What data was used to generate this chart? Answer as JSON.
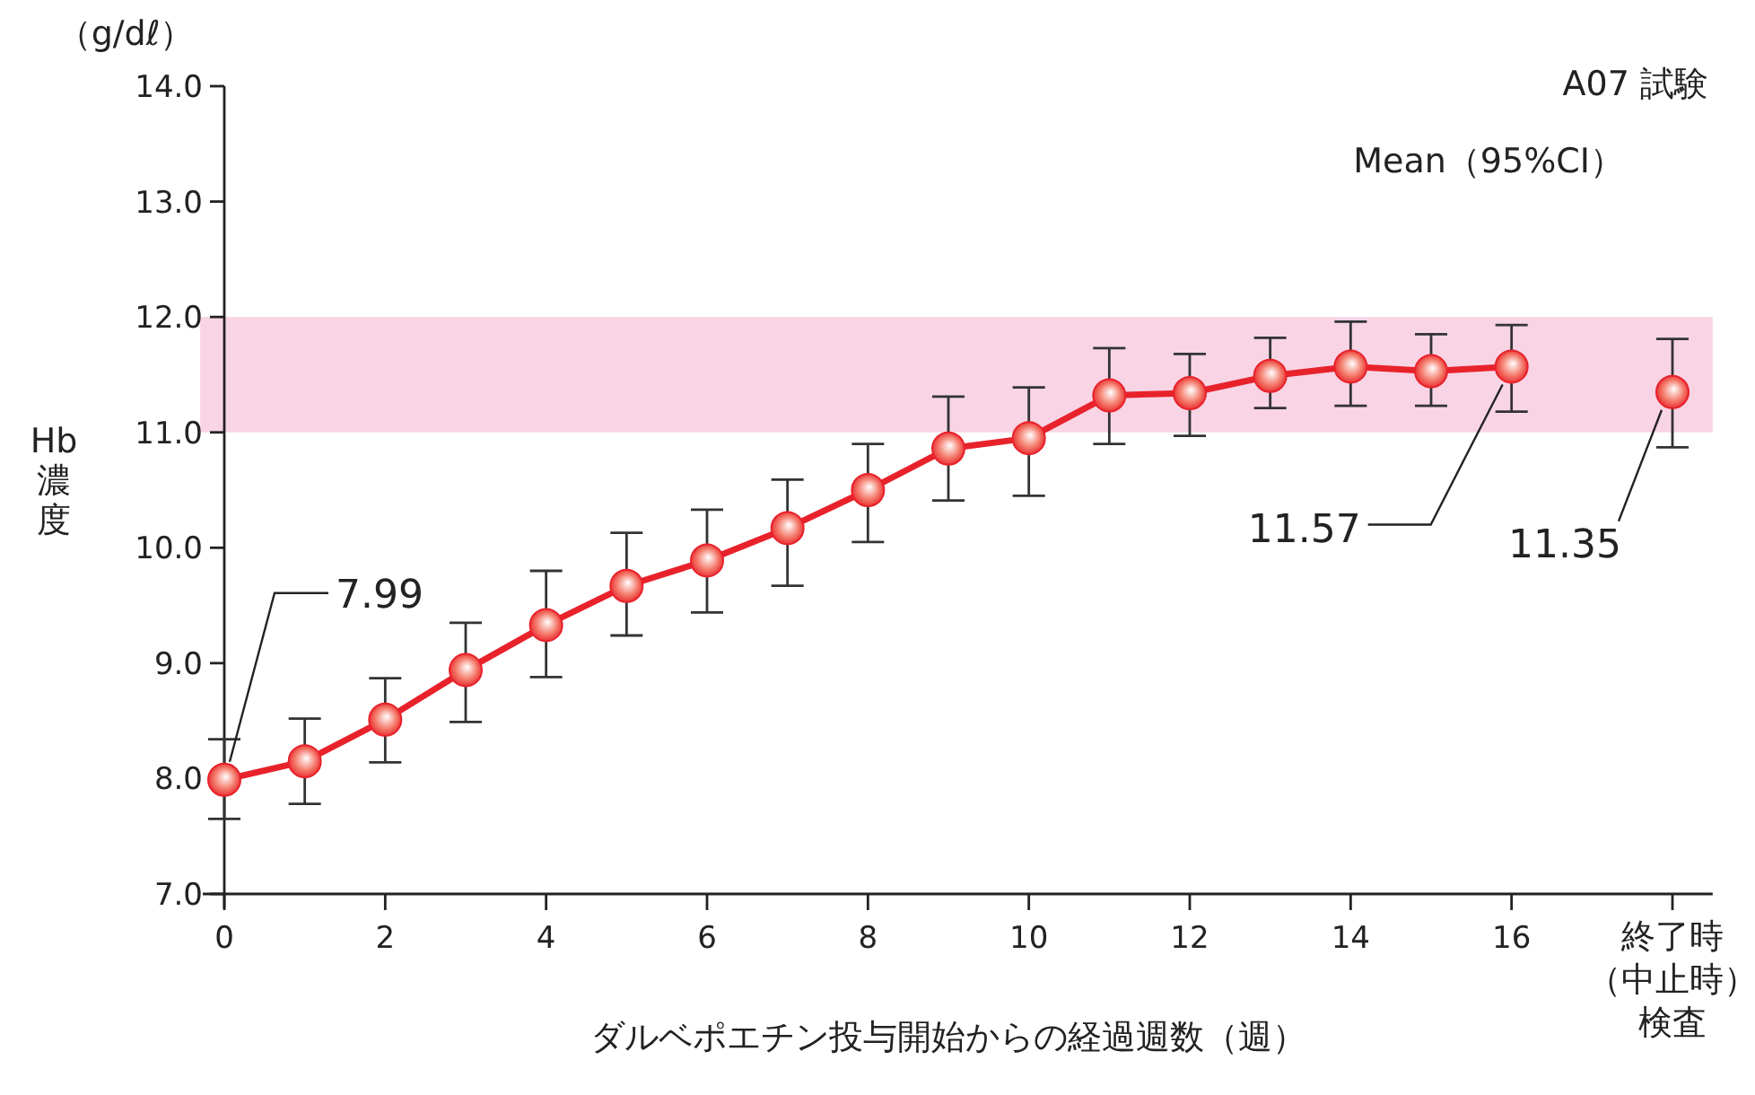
{
  "chart_data": {
    "type": "line",
    "title": "A07 試験",
    "subtitle": "Mean（95%CI）",
    "xlabel": "ダルベポエチン投与開始からの経過週数（週）",
    "ylabel": "Hb濃度",
    "xlim": [
      -0.3,
      18.5
    ],
    "ylim": [
      7,
      14
    ],
    "xticks": [
      0,
      2,
      4,
      6,
      8,
      10,
      12,
      14,
      16,
      {
        "value": 18,
        "label": "終了時（中止時）検査"
      }
    ],
    "yticks": [
      {
        "value": 7,
        "label": "7.0"
      },
      {
        "value": 8,
        "label": "8.0"
      },
      {
        "value": 9,
        "label": "9.0"
      },
      {
        "value": 10,
        "label": "10.0"
      },
      {
        "value": 11,
        "label": "11.0"
      },
      {
        "value": 12,
        "label": "12.0"
      },
      {
        "value": 13,
        "label": "13.0"
      },
      {
        "value": 14,
        "label": "14.0"
      }
    ],
    "marker": "circle",
    "grid": false,
    "bands": [
      {
        "axis": "y",
        "from": 11,
        "to": 12,
        "color": "#f8d4e5"
      }
    ],
    "series": [
      {
        "type": "line",
        "color": "#e8222b",
        "x": [
          0,
          1,
          2,
          3,
          4,
          5,
          6,
          7,
          8,
          9,
          10,
          11,
          12,
          13,
          14,
          15,
          16
        ],
        "values": [
          7.99,
          8.15,
          8.51,
          8.94,
          9.33,
          9.67,
          9.89,
          10.17,
          10.5,
          10.86,
          10.95,
          11.32,
          11.34,
          11.49,
          11.57,
          11.53,
          11.57
        ],
        "value_labels": [
          "7.99",
          null,
          null,
          null,
          null,
          null,
          null,
          null,
          null,
          null,
          null,
          null,
          null,
          null,
          null,
          null,
          "11.57"
        ],
        "errors": [
          [
            7.65,
            8.34
          ],
          [
            7.78,
            8.52
          ],
          [
            8.14,
            8.87
          ],
          [
            8.49,
            9.35
          ],
          [
            8.88,
            9.8
          ],
          [
            9.24,
            10.13
          ],
          [
            9.44,
            10.33
          ],
          [
            9.67,
            10.59
          ],
          [
            10.05,
            10.9
          ],
          [
            10.41,
            11.31
          ],
          [
            10.45,
            11.39
          ],
          [
            10.9,
            11.73
          ],
          [
            10.97,
            11.68
          ],
          [
            11.21,
            11.82
          ],
          [
            11.23,
            11.96
          ],
          [
            11.23,
            11.85
          ],
          [
            11.18,
            11.93
          ]
        ]
      },
      {
        "type": "scatter",
        "color": "#e8222b",
        "x": [
          18
        ],
        "values": [
          11.35
        ],
        "value_labels": [
          "11.35"
        ],
        "errors": [
          [
            10.87,
            11.81
          ]
        ]
      }
    ],
    "annotations": [
      "（g/dℓ）"
    ]
  }
}
